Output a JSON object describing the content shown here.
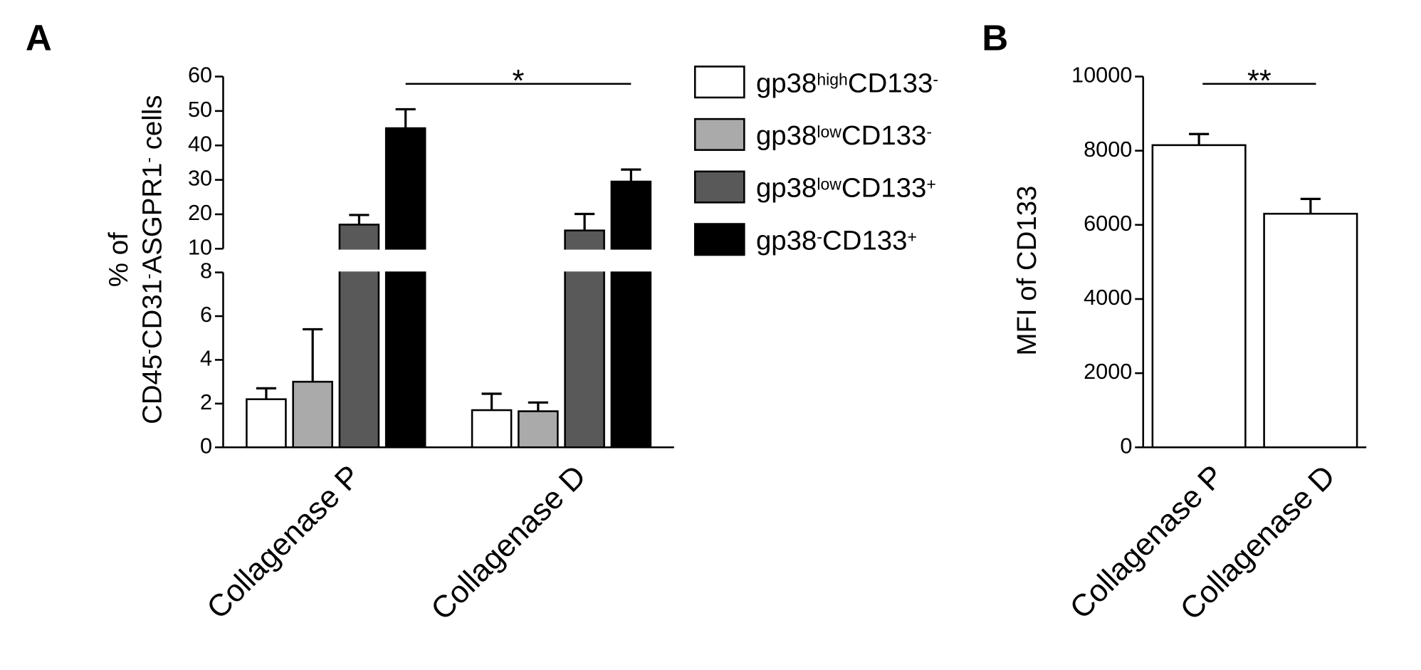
{
  "chart_data": [
    {
      "type": "broken_bar",
      "panel": "A",
      "ylabel": [
        [
          "% of"
        ],
        [
          "CD45",
          "-",
          "CD31",
          "-",
          "ASGPR1",
          "-",
          " cells"
        ]
      ],
      "categories": [
        "Collagenase P",
        "Collagenase D"
      ],
      "series": [
        {
          "name": [
            "gp38",
            "high",
            "CD133",
            "-"
          ],
          "color": "#ffffff",
          "values": [
            2.2,
            1.7
          ],
          "errors": [
            0.5,
            0.75
          ]
        },
        {
          "name": [
            "gp38",
            "low",
            "CD133",
            "-"
          ],
          "color": "#aaaaaa",
          "values": [
            3.0,
            1.65
          ],
          "errors": [
            2.4,
            0.4
          ]
        },
        {
          "name": [
            "gp38",
            "low",
            "CD133",
            "+"
          ],
          "color": "#595959",
          "values": [
            17,
            15.3
          ],
          "errors": [
            2.8,
            4.8
          ]
        },
        {
          "name": [
            "gp38",
            "-",
            "CD133",
            "+"
          ],
          "color": "#000000",
          "values": [
            45,
            29.5
          ],
          "errors": [
            5.5,
            3.5
          ]
        }
      ],
      "ylim_lower": [
        0,
        8
      ],
      "yticks_lower": [
        0,
        2,
        4,
        6,
        8
      ],
      "ylim_upper": [
        10,
        60
      ],
      "yticks_upper": [
        10,
        20,
        30,
        40,
        50,
        60
      ],
      "annotations": [
        {
          "text": "*"
        }
      ]
    },
    {
      "type": "bar",
      "panel": "B",
      "ylabel": "MFI of CD133",
      "categories": [
        "Collagenase P",
        "Collagenase D"
      ],
      "color": "#ffffff",
      "values": [
        8150,
        6300
      ],
      "errors": [
        300,
        400
      ],
      "ylim": [
        0,
        10000
      ],
      "yticks": [
        0,
        2000,
        4000,
        6000,
        8000,
        10000
      ],
      "annotations": [
        {
          "text": "**"
        }
      ]
    }
  ]
}
